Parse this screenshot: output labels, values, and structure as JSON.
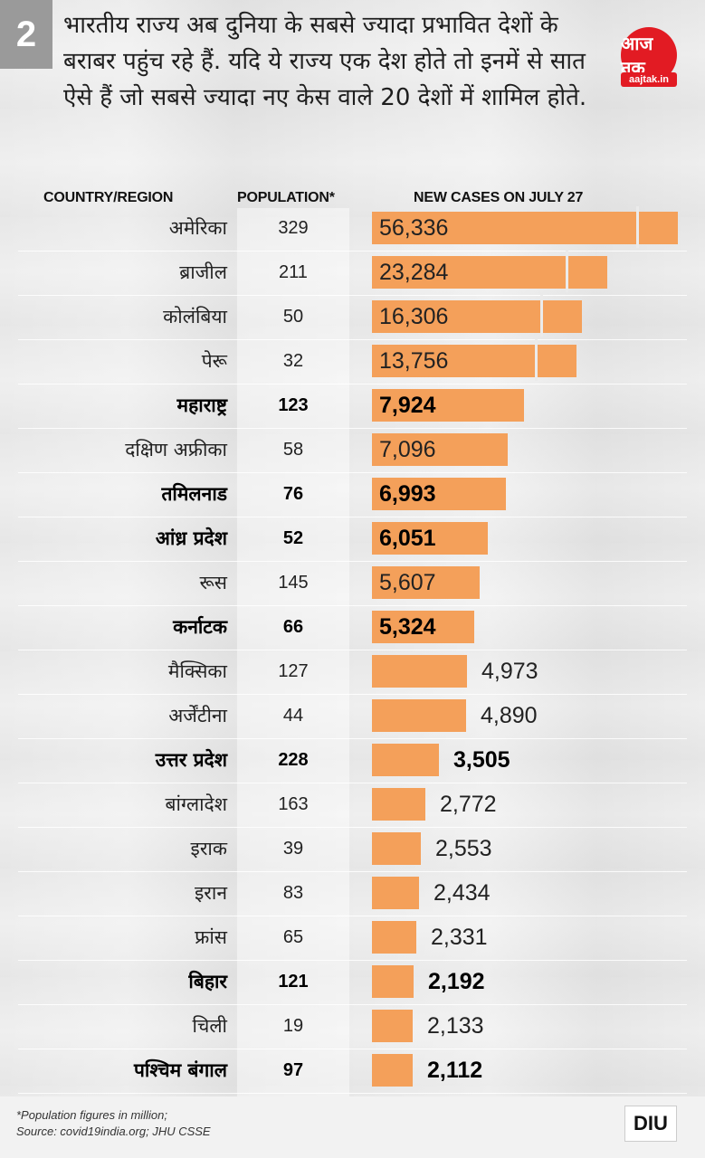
{
  "graphic_number": "2",
  "headline": "भारतीय राज्य अब दुनिया के सबसे ज्यादा प्रभावित देशों के बराबर पहुंच रहे हैं. यदि ये राज्य एक देश होते तो इनमें से सात ऐसे हैं जो सबसे ज्यादा नए केस वाले 20 देशों में शामिल होते.",
  "logo": {
    "text": "आज तक",
    "sub": "aajtak.in",
    "color": "#e21b23"
  },
  "footer": {
    "note_line1": "*Population figures in million;",
    "note_line2": "Source: covid19india.org; JHU CSSE",
    "brand": "DIU"
  },
  "colors": {
    "bar": "#f4a05a",
    "background": "#ebebeb"
  },
  "chart_data": {
    "type": "bar",
    "orientation": "horizontal",
    "title": "NEW CASES ON JULY 27",
    "column_headers": {
      "country": "COUNTRY/REGION",
      "population": "POPULATION*",
      "cases": "NEW CASES ON JULY 27"
    },
    "categories": [
      "अमेरिका",
      "ब्राजील",
      "कोलंबिया",
      "पेरू",
      "महाराष्ट्र",
      "दक्षिण अफ्रीका",
      "तमिलनाड",
      "आंध्र प्रदेश",
      "रूस",
      "कर्नाटक",
      "मैक्सिका",
      "अर्जेंटीना",
      "उत्तर प्रदेश",
      "बांग्लादेश",
      "इराक",
      "इरान",
      "फ्रांस",
      "बिहार",
      "चिली",
      "पश्चिम बंगाल"
    ],
    "population": [
      329,
      211,
      50,
      32,
      123,
      58,
      76,
      52,
      145,
      66,
      127,
      44,
      228,
      163,
      39,
      83,
      65,
      121,
      19,
      97
    ],
    "values": [
      56336,
      23284,
      16306,
      13756,
      7924,
      7096,
      6993,
      6051,
      5607,
      5324,
      4973,
      4890,
      3505,
      2772,
      2553,
      2434,
      2331,
      2192,
      2133,
      2112
    ],
    "value_labels": [
      "56,336",
      "23,284",
      "16,306",
      "13,756",
      "7,924",
      "7,096",
      "6,993",
      "6,051",
      "5,607",
      "5,324",
      "4,973",
      "4,890",
      "3,505",
      "2,772",
      "2,553",
      "2,434",
      "2,331",
      "2,192",
      "2,133",
      "2,112"
    ],
    "is_indian_state": [
      false,
      false,
      false,
      false,
      true,
      false,
      true,
      true,
      false,
      true,
      false,
      false,
      true,
      false,
      false,
      false,
      false,
      true,
      false,
      true
    ],
    "broken_axis": [
      true,
      true,
      true,
      true,
      false,
      false,
      false,
      false,
      false,
      false,
      false,
      false,
      false,
      false,
      false,
      false,
      false,
      false,
      false,
      false
    ],
    "population_unit": "million"
  }
}
